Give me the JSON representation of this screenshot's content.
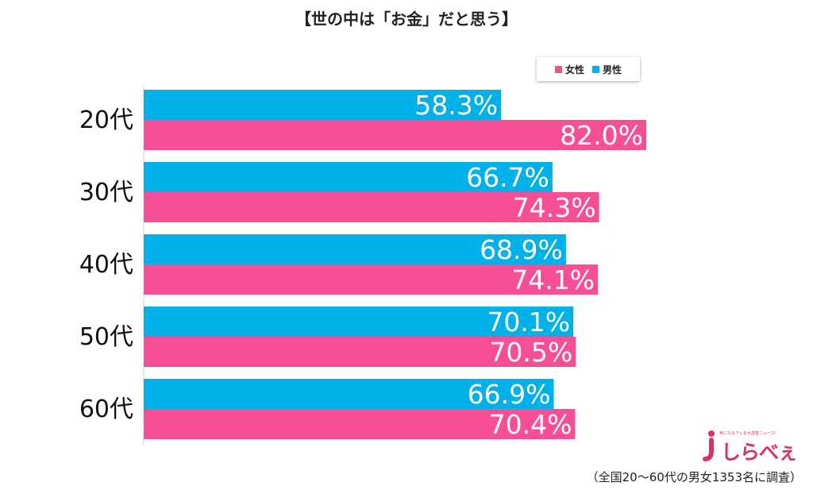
{
  "title": "【世の中は「お金」だと思う】",
  "legend": {
    "female_label": "女性",
    "male_label": "男性",
    "female_color": "#f64f95",
    "male_color": "#00b0e8"
  },
  "chart_data": {
    "type": "bar",
    "orientation": "horizontal",
    "categories": [
      "20代",
      "30代",
      "40代",
      "50代",
      "60代"
    ],
    "series": [
      {
        "name": "男性",
        "color": "#00b0e8",
        "values": [
          58.3,
          66.7,
          68.9,
          70.1,
          66.9
        ]
      },
      {
        "name": "女性",
        "color": "#f64f95",
        "values": [
          82.0,
          74.3,
          74.1,
          70.5,
          70.4
        ]
      }
    ],
    "value_suffix": "%",
    "xlim": [
      0,
      100
    ],
    "grid": false,
    "legend_position": "top-right"
  },
  "logo": {
    "text": "しらべぇ",
    "tagline": "気になるアレを大調査ニュース！"
  },
  "footnote": "（全国20～60代の男女1353名に調査）"
}
